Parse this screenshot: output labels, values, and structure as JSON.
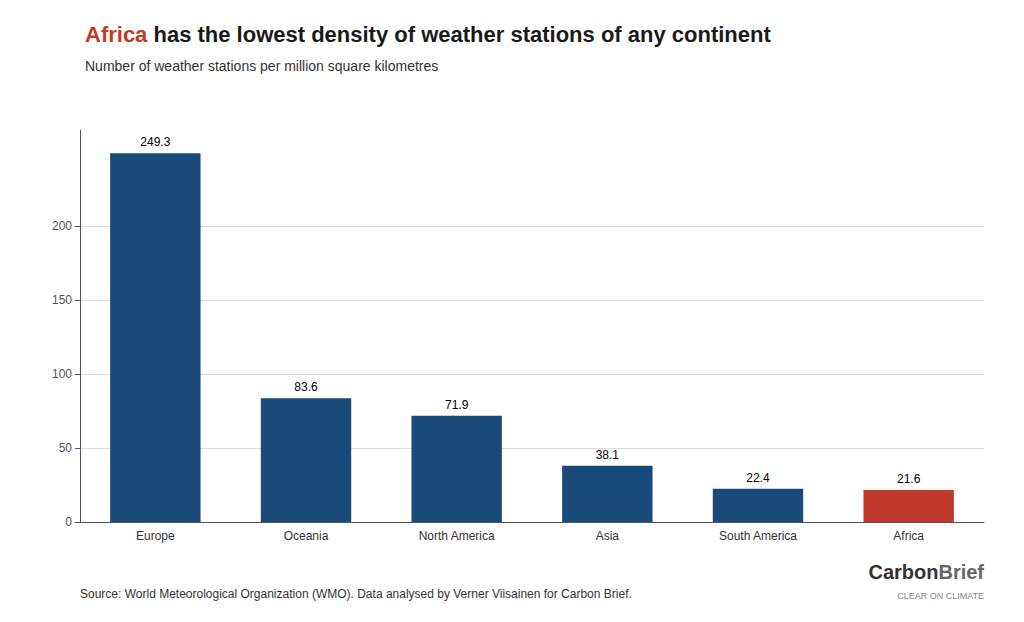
{
  "chart_data": {
    "type": "bar",
    "title": "Africa has the lowest density of weather stations of any continent",
    "subtitle": "Number of weather stations per million square kilometres",
    "categories": [
      "Europe",
      "Oceania",
      "North America",
      "Asia",
      "South America",
      "Africa"
    ],
    "values": [
      249.3,
      83.6,
      71.9,
      38.1,
      22.4,
      21.6
    ],
    "colors": [
      "#1a4a7a",
      "#1a4a7a",
      "#1a4a7a",
      "#1a4a7a",
      "#1a4a7a",
      "#c0392b"
    ],
    "ylim": [
      0,
      265
    ],
    "yticks": [
      0,
      50,
      100,
      150,
      200
    ],
    "grid": true,
    "data_labels": true,
    "annotations": [
      "Source: World Meteorological Organization (WMO). Data analysed by Verner Viisainen for Carbon Brief.",
      "Carbon",
      "Brief",
      "CLEAR ON CLIMATE"
    ]
  }
}
